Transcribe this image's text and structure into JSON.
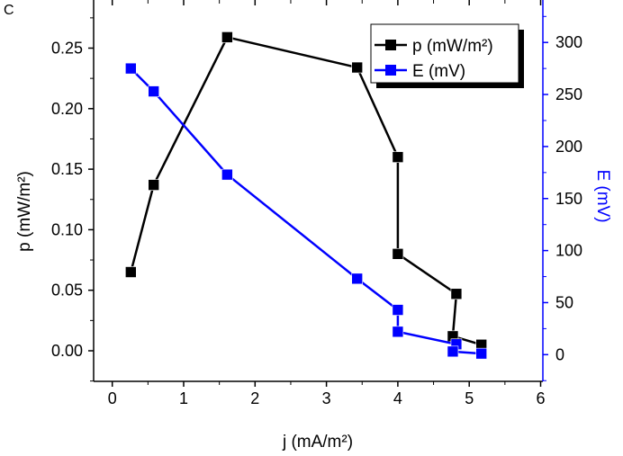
{
  "chart_data": {
    "type": "line",
    "panel_label": "C",
    "xlabel": "j (mA/m²)",
    "ylabel_left": "p (mW/m²)",
    "ylabel_right": "E (mV)",
    "xlim": [
      -0.25,
      6
    ],
    "ylim_left": [
      -0.025,
      0.275
    ],
    "ylim_right": [
      -25,
      325
    ],
    "xticks": [
      0,
      1,
      2,
      3,
      4,
      5,
      6
    ],
    "yticks_left": [
      "0.00",
      "0.05",
      "0.10",
      "0.15",
      "0.20",
      "0.25"
    ],
    "yticks_right": [
      0,
      50,
      100,
      150,
      200,
      250,
      300
    ],
    "grid": false,
    "legend_position": "top-right",
    "series": [
      {
        "name": "p (mW/m²)",
        "axis": "left",
        "color": "#000000",
        "x": [
          0.26,
          0.58,
          1.61,
          3.43,
          4.0,
          4.0,
          4.82,
          4.77,
          5.17
        ],
        "y": [
          0.065,
          0.137,
          0.259,
          0.234,
          0.16,
          0.08,
          0.047,
          0.012,
          0.005
        ]
      },
      {
        "name": "E (mV)",
        "axis": "right",
        "color": "#0000ff",
        "x": [
          0.26,
          0.58,
          1.61,
          3.43,
          4.0,
          4.0,
          4.82,
          4.77,
          5.17
        ],
        "y": [
          275,
          253,
          173,
          73,
          43,
          22,
          10,
          3,
          1
        ]
      }
    ]
  }
}
